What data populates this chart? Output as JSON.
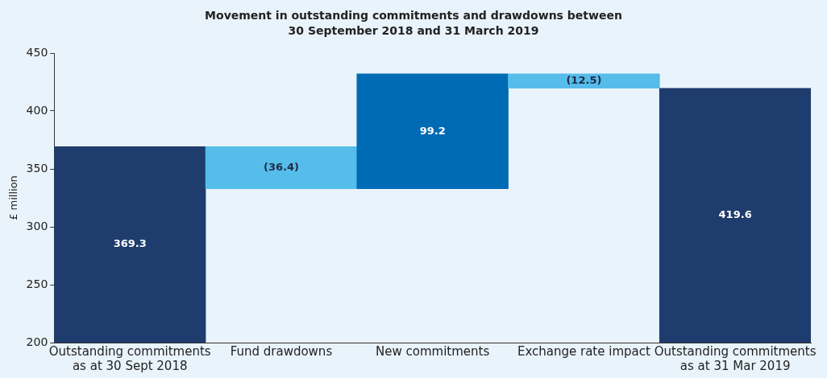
{
  "chart_data": {
    "type": "bar",
    "title": "Movement in outstanding commitments and drawdowns between\n30 September 2018 and 31 March 2019",
    "ylabel": "£ million",
    "categories": [
      "Outstanding commitments as at 30 Sept 2018",
      "Fund drawdowns",
      "New commitments",
      "Exchange rate impact",
      "Outstanding commitments as at 31 Mar 2019"
    ],
    "values": [
      369.3,
      -36.4,
      99.2,
      -12.5,
      419.6
    ],
    "base": [
      0,
      369.3,
      332.9,
      432.1,
      0
    ],
    "colors": [
      "#1f3c6e",
      "#56bdeb",
      "#006bb5",
      "#56bdeb",
      "#1f3c6e"
    ],
    "value_labels": [
      "369.3",
      "(36.4)",
      "99.2",
      "(12.5)",
      "419.6"
    ],
    "ylim": [
      200,
      450
    ],
    "yticks": [
      200,
      250,
      300,
      350,
      400,
      450
    ],
    "grid": false,
    "legend": false
  }
}
